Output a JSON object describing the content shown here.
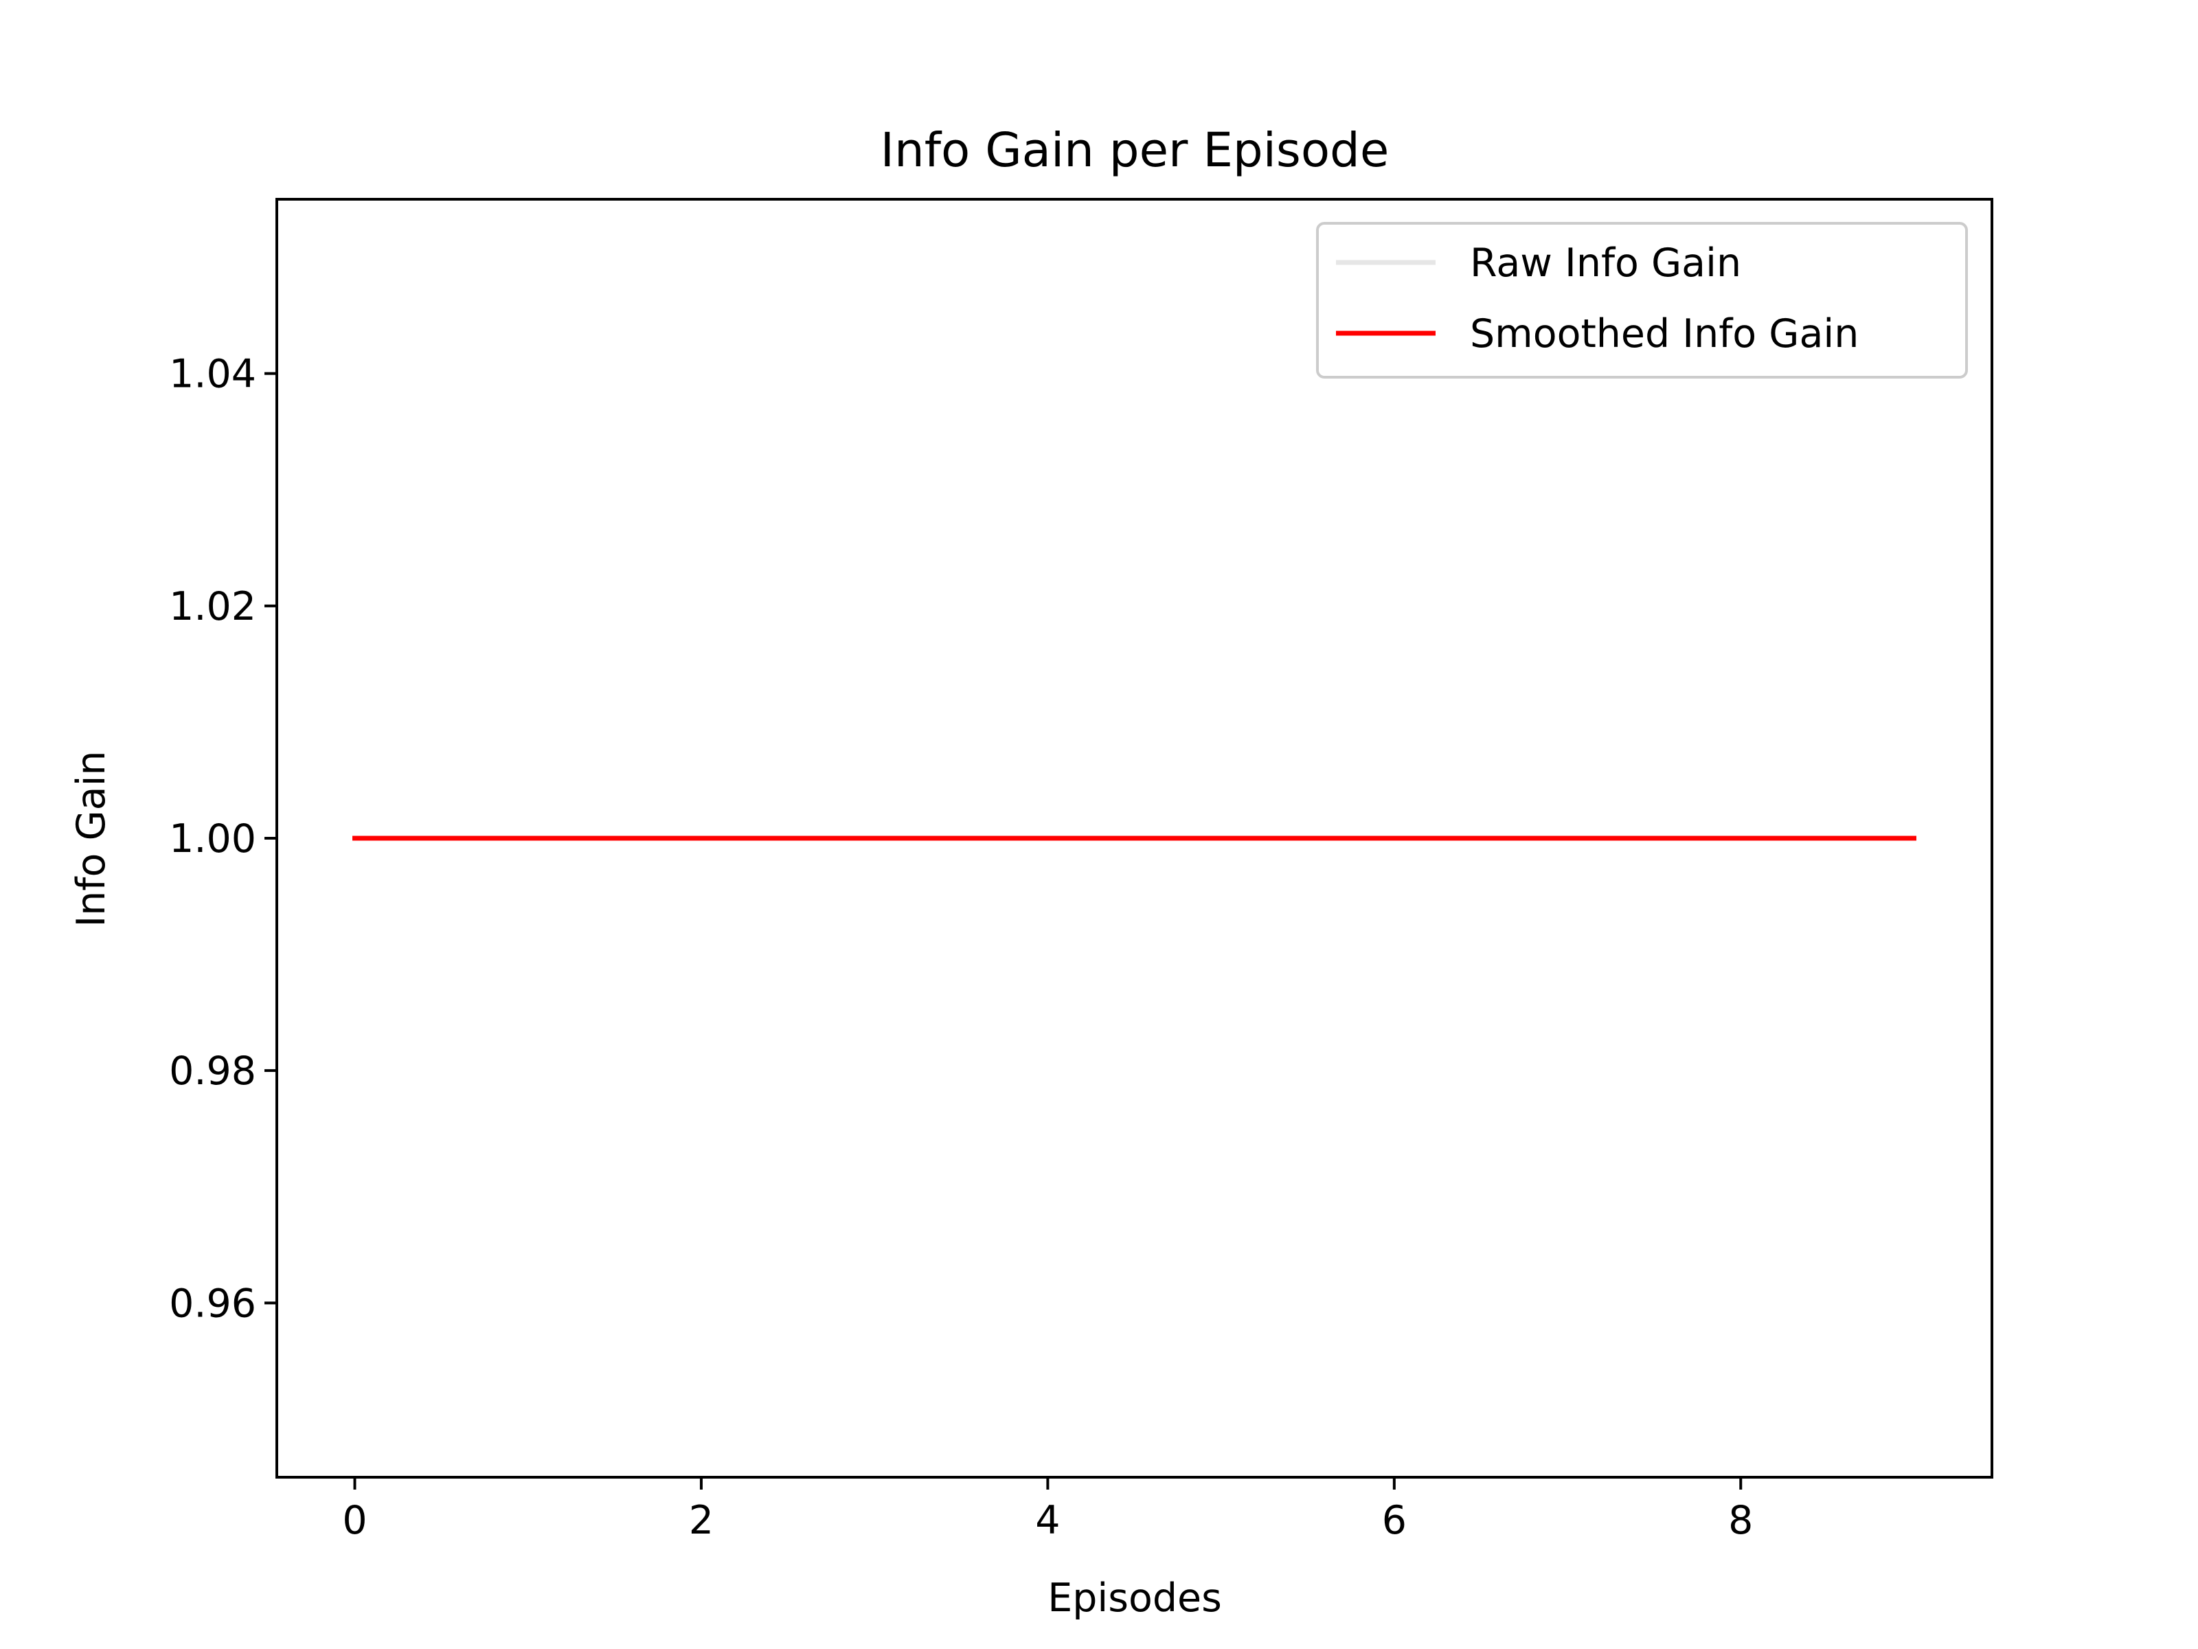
{
  "chart_data": {
    "type": "line",
    "title": "Info Gain per Episode",
    "xlabel": "Episodes",
    "ylabel": "Info Gain",
    "xlim": [
      -0.45,
      9.45
    ],
    "ylim": [
      0.945,
      1.055
    ],
    "xticks": [
      0,
      2,
      4,
      6,
      8
    ],
    "xtick_labels": [
      "0",
      "2",
      "4",
      "6",
      "8"
    ],
    "yticks": [
      0.96,
      0.98,
      1.0,
      1.02,
      1.04
    ],
    "ytick_labels": [
      "0.96",
      "0.98",
      "1.00",
      "1.02",
      "1.04"
    ],
    "grid": false,
    "legend_position": "top-right",
    "x": [
      0,
      1,
      2,
      3,
      4,
      5,
      6,
      7,
      8,
      9
    ],
    "series": [
      {
        "name": "Raw Info Gain",
        "color": "#e6e6e6",
        "values": [
          1,
          1,
          1,
          1,
          1,
          1,
          1,
          1,
          1,
          1
        ]
      },
      {
        "name": "Smoothed Info Gain",
        "color": "#ff0000",
        "values": [
          1,
          1,
          1,
          1,
          1,
          1,
          1,
          1,
          1,
          1
        ]
      }
    ]
  }
}
